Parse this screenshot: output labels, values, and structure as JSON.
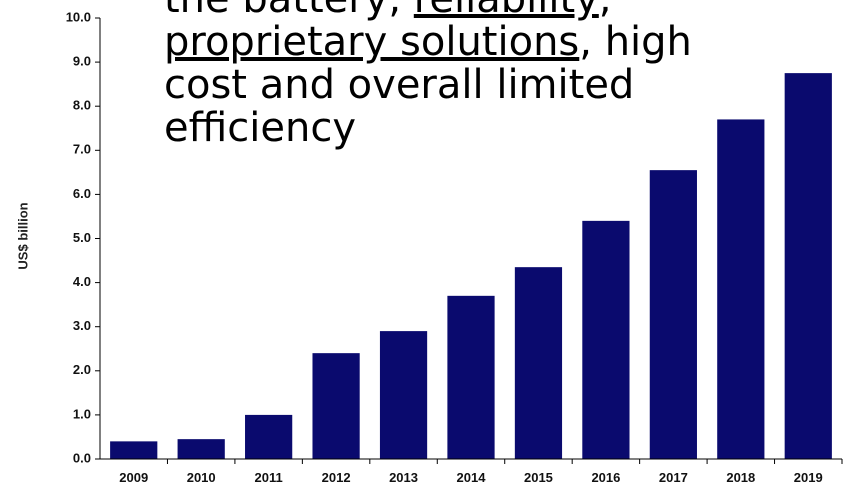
{
  "overlay_text": {
    "line1_pre": "the battery, ",
    "line1_link": "reliability",
    "line1_post": ",",
    "line2_link": "proprietary solutions",
    "line2_post": ", high",
    "line3": "cost and overall limited",
    "line4": "efficiency"
  },
  "colors": {
    "bar": "#0a0a6e",
    "axis": "#000000"
  },
  "chart_data": {
    "type": "bar",
    "title": "",
    "xlabel": "",
    "ylabel": "US$ billion",
    "categories": [
      "2009",
      "2010",
      "2011",
      "2012",
      "2013",
      "2014",
      "2015",
      "2016",
      "2017",
      "2018",
      "2019"
    ],
    "values": [
      0.4,
      0.45,
      1.0,
      2.4,
      2.9,
      3.7,
      4.35,
      5.4,
      6.55,
      7.7,
      8.75
    ],
    "ylim": [
      0,
      10
    ],
    "yticks": [
      "0.0",
      "1.0",
      "2.0",
      "3.0",
      "4.0",
      "5.0",
      "6.0",
      "7.0",
      "8.0",
      "9.0",
      "10.0"
    ],
    "grid": false,
    "legend": "none"
  }
}
